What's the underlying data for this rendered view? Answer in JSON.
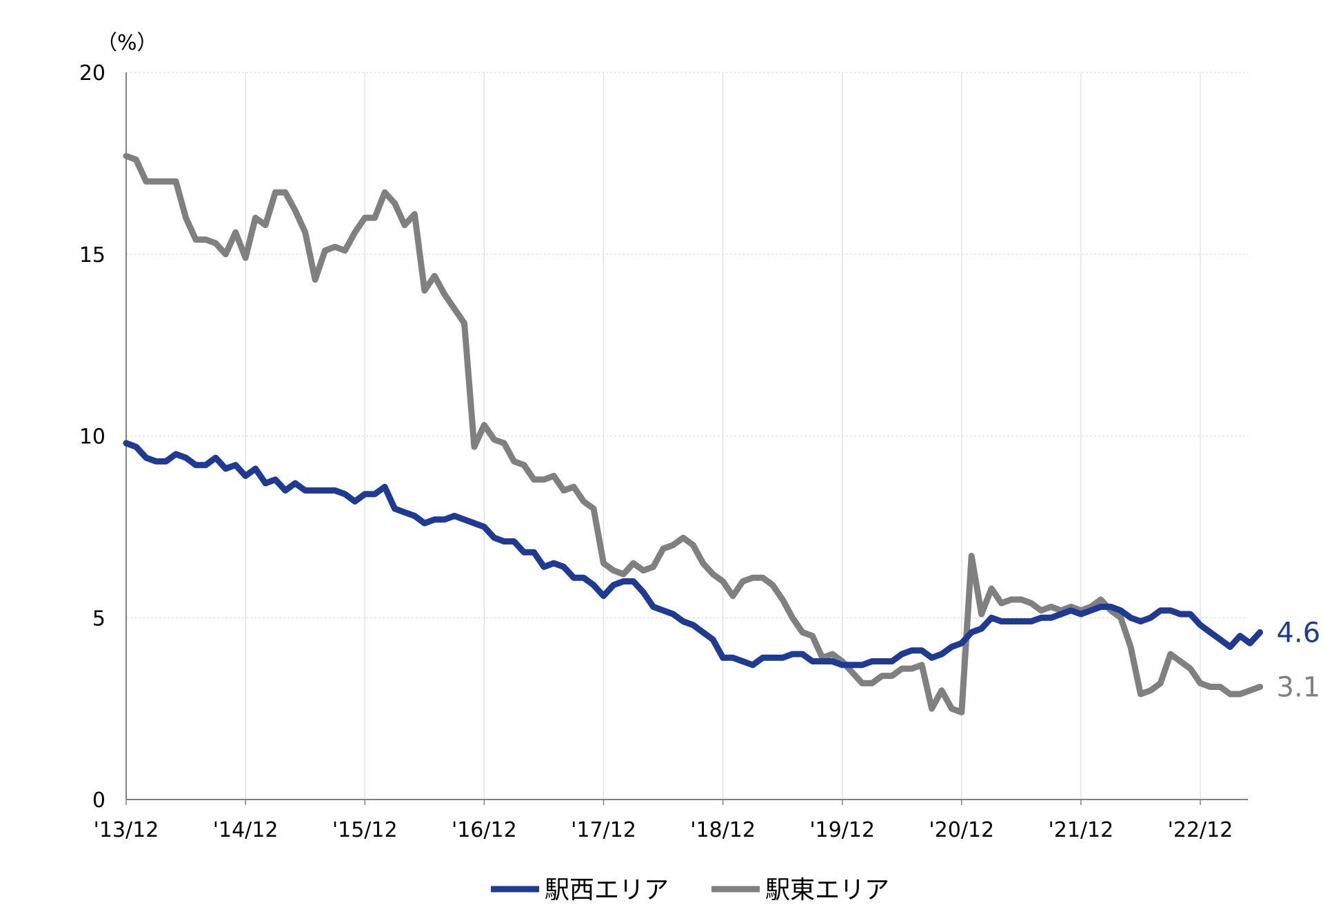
{
  "chart_data": {
    "type": "line",
    "unit_label": "（%）",
    "ylim": [
      0,
      20
    ],
    "y_ticks": [
      0,
      5,
      10,
      15,
      20
    ],
    "x_range": [
      "2013-12",
      "2023-05"
    ],
    "x_tick_labels": [
      "'13/12",
      "'14/12",
      "'15/12",
      "'16/12",
      "'17/12",
      "'18/12",
      "'19/12",
      "'20/12",
      "'21/12",
      "'22/12"
    ],
    "x_tick_dates": [
      "2013-12",
      "2014-12",
      "2015-12",
      "2016-12",
      "2017-12",
      "2018-12",
      "2019-12",
      "2020-12",
      "2021-12",
      "2022-12"
    ],
    "grid": true,
    "legend_position": "bottom",
    "series": [
      {
        "name": "駅西エリア",
        "color": "#1f3a93",
        "end_label": "4.6",
        "points": [
          [
            "2013-12",
            9.8
          ],
          [
            "2014-01",
            9.7
          ],
          [
            "2014-02",
            9.4
          ],
          [
            "2014-03",
            9.3
          ],
          [
            "2014-04",
            9.3
          ],
          [
            "2014-05",
            9.5
          ],
          [
            "2014-06",
            9.4
          ],
          [
            "2014-07",
            9.2
          ],
          [
            "2014-08",
            9.2
          ],
          [
            "2014-09",
            9.4
          ],
          [
            "2014-10",
            9.1
          ],
          [
            "2014-11",
            9.2
          ],
          [
            "2014-12",
            8.9
          ],
          [
            "2015-01",
            9.1
          ],
          [
            "2015-02",
            8.7
          ],
          [
            "2015-03",
            8.8
          ],
          [
            "2015-04",
            8.5
          ],
          [
            "2015-05",
            8.7
          ],
          [
            "2015-06",
            8.5
          ],
          [
            "2015-07",
            8.5
          ],
          [
            "2015-08",
            8.5
          ],
          [
            "2015-09",
            8.5
          ],
          [
            "2015-10",
            8.4
          ],
          [
            "2015-11",
            8.2
          ],
          [
            "2015-12",
            8.4
          ],
          [
            "2016-01",
            8.4
          ],
          [
            "2016-02",
            8.6
          ],
          [
            "2016-03",
            8.0
          ],
          [
            "2016-04",
            7.9
          ],
          [
            "2016-05",
            7.8
          ],
          [
            "2016-06",
            7.6
          ],
          [
            "2016-07",
            7.7
          ],
          [
            "2016-08",
            7.7
          ],
          [
            "2016-09",
            7.8
          ],
          [
            "2016-10",
            7.7
          ],
          [
            "2016-11",
            7.6
          ],
          [
            "2016-12",
            7.5
          ],
          [
            "2017-01",
            7.2
          ],
          [
            "2017-02",
            7.1
          ],
          [
            "2017-03",
            7.1
          ],
          [
            "2017-04",
            6.8
          ],
          [
            "2017-05",
            6.8
          ],
          [
            "2017-06",
            6.4
          ],
          [
            "2017-07",
            6.5
          ],
          [
            "2017-08",
            6.4
          ],
          [
            "2017-09",
            6.1
          ],
          [
            "2017-10",
            6.1
          ],
          [
            "2017-11",
            5.9
          ],
          [
            "2017-12",
            5.6
          ],
          [
            "2018-01",
            5.9
          ],
          [
            "2018-02",
            6.0
          ],
          [
            "2018-03",
            6.0
          ],
          [
            "2018-04",
            5.7
          ],
          [
            "2018-05",
            5.3
          ],
          [
            "2018-06",
            5.2
          ],
          [
            "2018-07",
            5.1
          ],
          [
            "2018-08",
            4.9
          ],
          [
            "2018-09",
            4.8
          ],
          [
            "2018-10",
            4.6
          ],
          [
            "2018-11",
            4.4
          ],
          [
            "2018-12",
            3.9
          ],
          [
            "2019-01",
            3.9
          ],
          [
            "2019-02",
            3.8
          ],
          [
            "2019-03",
            3.7
          ],
          [
            "2019-04",
            3.9
          ],
          [
            "2019-05",
            3.9
          ],
          [
            "2019-06",
            3.9
          ],
          [
            "2019-07",
            4.0
          ],
          [
            "2019-08",
            4.0
          ],
          [
            "2019-09",
            3.8
          ],
          [
            "2019-10",
            3.8
          ],
          [
            "2019-11",
            3.8
          ],
          [
            "2019-12",
            3.7
          ],
          [
            "2020-01",
            3.7
          ],
          [
            "2020-02",
            3.7
          ],
          [
            "2020-03",
            3.8
          ],
          [
            "2020-04",
            3.8
          ],
          [
            "2020-05",
            3.8
          ],
          [
            "2020-06",
            4.0
          ],
          [
            "2020-07",
            4.1
          ],
          [
            "2020-08",
            4.1
          ],
          [
            "2020-09",
            3.9
          ],
          [
            "2020-10",
            4.0
          ],
          [
            "2020-11",
            4.2
          ],
          [
            "2020-12",
            4.3
          ],
          [
            "2021-01",
            4.6
          ],
          [
            "2021-02",
            4.7
          ],
          [
            "2021-03",
            5.0
          ],
          [
            "2021-04",
            4.9
          ],
          [
            "2021-05",
            4.9
          ],
          [
            "2021-06",
            4.9
          ],
          [
            "2021-07",
            4.9
          ],
          [
            "2021-08",
            5.0
          ],
          [
            "2021-09",
            5.0
          ],
          [
            "2021-10",
            5.1
          ],
          [
            "2021-11",
            5.2
          ],
          [
            "2021-12",
            5.1
          ],
          [
            "2022-01",
            5.2
          ],
          [
            "2022-02",
            5.3
          ],
          [
            "2022-03",
            5.3
          ],
          [
            "2022-04",
            5.2
          ],
          [
            "2022-05",
            5.0
          ],
          [
            "2022-06",
            4.9
          ],
          [
            "2022-07",
            5.0
          ],
          [
            "2022-08",
            5.2
          ],
          [
            "2022-09",
            5.2
          ],
          [
            "2022-10",
            5.1
          ],
          [
            "2022-11",
            5.1
          ],
          [
            "2022-12",
            4.8
          ],
          [
            "2023-01",
            4.6
          ],
          [
            "2023-02",
            4.4
          ],
          [
            "2023-03",
            4.2
          ],
          [
            "2023-04",
            4.5
          ],
          [
            "2023-05",
            4.3
          ],
          [
            "2023-06",
            4.6
          ]
        ]
      },
      {
        "name": "駅東エリア",
        "color": "#808080",
        "end_label": "3.1",
        "points": [
          [
            "2013-12",
            17.7
          ],
          [
            "2014-01",
            17.6
          ],
          [
            "2014-02",
            17.0
          ],
          [
            "2014-03",
            17.0
          ],
          [
            "2014-04",
            17.0
          ],
          [
            "2014-05",
            17.0
          ],
          [
            "2014-06",
            16.0
          ],
          [
            "2014-07",
            15.4
          ],
          [
            "2014-08",
            15.4
          ],
          [
            "2014-09",
            15.3
          ],
          [
            "2014-10",
            15.0
          ],
          [
            "2014-11",
            15.6
          ],
          [
            "2014-12",
            14.9
          ],
          [
            "2015-01",
            16.0
          ],
          [
            "2015-02",
            15.8
          ],
          [
            "2015-03",
            16.7
          ],
          [
            "2015-04",
            16.7
          ],
          [
            "2015-05",
            16.2
          ],
          [
            "2015-06",
            15.6
          ],
          [
            "2015-07",
            14.3
          ],
          [
            "2015-08",
            15.1
          ],
          [
            "2015-09",
            15.2
          ],
          [
            "2015-10",
            15.1
          ],
          [
            "2015-11",
            15.6
          ],
          [
            "2015-12",
            16.0
          ],
          [
            "2016-01",
            16.0
          ],
          [
            "2016-02",
            16.7
          ],
          [
            "2016-03",
            16.4
          ],
          [
            "2016-04",
            15.8
          ],
          [
            "2016-05",
            16.1
          ],
          [
            "2016-06",
            14.0
          ],
          [
            "2016-07",
            14.4
          ],
          [
            "2016-08",
            13.9
          ],
          [
            "2016-09",
            13.5
          ],
          [
            "2016-10",
            13.1
          ],
          [
            "2016-11",
            9.7
          ],
          [
            "2016-12",
            10.3
          ],
          [
            "2017-01",
            9.9
          ],
          [
            "2017-02",
            9.8
          ],
          [
            "2017-03",
            9.3
          ],
          [
            "2017-04",
            9.2
          ],
          [
            "2017-05",
            8.8
          ],
          [
            "2017-06",
            8.8
          ],
          [
            "2017-07",
            8.9
          ],
          [
            "2017-08",
            8.5
          ],
          [
            "2017-09",
            8.6
          ],
          [
            "2017-10",
            8.2
          ],
          [
            "2017-11",
            8.0
          ],
          [
            "2017-12",
            6.5
          ],
          [
            "2018-01",
            6.3
          ],
          [
            "2018-02",
            6.2
          ],
          [
            "2018-03",
            6.5
          ],
          [
            "2018-04",
            6.3
          ],
          [
            "2018-05",
            6.4
          ],
          [
            "2018-06",
            6.9
          ],
          [
            "2018-07",
            7.0
          ],
          [
            "2018-08",
            7.2
          ],
          [
            "2018-09",
            7.0
          ],
          [
            "2018-10",
            6.5
          ],
          [
            "2018-11",
            6.2
          ],
          [
            "2018-12",
            6.0
          ],
          [
            "2019-01",
            5.6
          ],
          [
            "2019-02",
            6.0
          ],
          [
            "2019-03",
            6.1
          ],
          [
            "2019-04",
            6.1
          ],
          [
            "2019-05",
            5.9
          ],
          [
            "2019-06",
            5.5
          ],
          [
            "2019-07",
            5.0
          ],
          [
            "2019-08",
            4.6
          ],
          [
            "2019-09",
            4.5
          ],
          [
            "2019-10",
            3.9
          ],
          [
            "2019-11",
            4.0
          ],
          [
            "2019-12",
            3.8
          ],
          [
            "2020-01",
            3.5
          ],
          [
            "2020-02",
            3.2
          ],
          [
            "2020-03",
            3.2
          ],
          [
            "2020-04",
            3.4
          ],
          [
            "2020-05",
            3.4
          ],
          [
            "2020-06",
            3.6
          ],
          [
            "2020-07",
            3.6
          ],
          [
            "2020-08",
            3.7
          ],
          [
            "2020-09",
            2.5
          ],
          [
            "2020-10",
            3.0
          ],
          [
            "2020-11",
            2.5
          ],
          [
            "2020-12",
            2.4
          ],
          [
            "2021-01",
            6.7
          ],
          [
            "2021-02",
            5.1
          ],
          [
            "2021-03",
            5.8
          ],
          [
            "2021-04",
            5.4
          ],
          [
            "2021-05",
            5.5
          ],
          [
            "2021-06",
            5.5
          ],
          [
            "2021-07",
            5.4
          ],
          [
            "2021-08",
            5.2
          ],
          [
            "2021-09",
            5.3
          ],
          [
            "2021-10",
            5.2
          ],
          [
            "2021-11",
            5.3
          ],
          [
            "2021-12",
            5.2
          ],
          [
            "2022-01",
            5.3
          ],
          [
            "2022-02",
            5.5
          ],
          [
            "2022-03",
            5.2
          ],
          [
            "2022-04",
            5.0
          ],
          [
            "2022-05",
            4.2
          ],
          [
            "2022-06",
            2.9
          ],
          [
            "2022-07",
            3.0
          ],
          [
            "2022-08",
            3.2
          ],
          [
            "2022-09",
            4.0
          ],
          [
            "2022-10",
            3.8
          ],
          [
            "2022-11",
            3.6
          ],
          [
            "2022-12",
            3.2
          ],
          [
            "2023-01",
            3.1
          ],
          [
            "2023-02",
            3.1
          ],
          [
            "2023-03",
            2.9
          ],
          [
            "2023-04",
            2.9
          ],
          [
            "2023-05",
            3.0
          ],
          [
            "2023-06",
            3.1
          ]
        ]
      }
    ]
  }
}
